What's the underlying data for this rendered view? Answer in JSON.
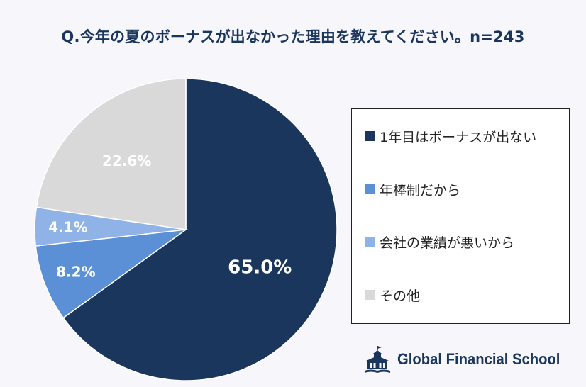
{
  "title": "Q.今年の夏のボーナスが出なかった理由を教えてください。n=243",
  "chart_data": {
    "type": "pie",
    "categories": [
      "1年目はボーナスが出ない",
      "年棒制だから",
      "会社の業績が悪いから",
      "その他"
    ],
    "values": [
      65.0,
      8.2,
      4.1,
      22.6
    ],
    "labels": [
      "65.0%",
      "8.2%",
      "4.1%",
      "22.6%"
    ],
    "colors": [
      "#1b365d",
      "#5b8fd6",
      "#8fb3e6",
      "#d9d9d9"
    ],
    "start": "12 o'clock",
    "direction": "clockwise",
    "legend_position": "right",
    "title": "Q.今年の夏のボーナスが出なかった理由を教えてください。n=243"
  },
  "logo": {
    "text": "Global Financial School",
    "icon": "school-building-icon"
  }
}
